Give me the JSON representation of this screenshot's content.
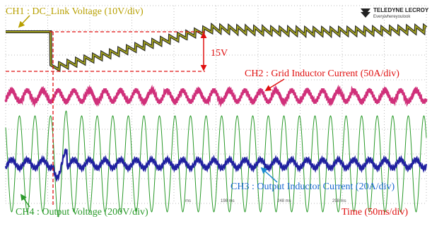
{
  "labels": {
    "ch1": "CH1 : DC_Link Voltage (10V/div)",
    "ch2": "CH2 : Grid Inductor Current (50A/div)",
    "ch3": "CH3 : Output Inductor Current (20A/div)",
    "ch4": "CH4 : Output Voltage (200V/div)",
    "time": "Time (50ms/div)",
    "delta": "15V"
  },
  "logo": {
    "brand": "TELEDYNE LECROY",
    "tagline": "Everywhereyoulook"
  },
  "time_ticks": [
    "ms",
    "198 ms",
    "248 ms",
    "298 ms"
  ]
}
